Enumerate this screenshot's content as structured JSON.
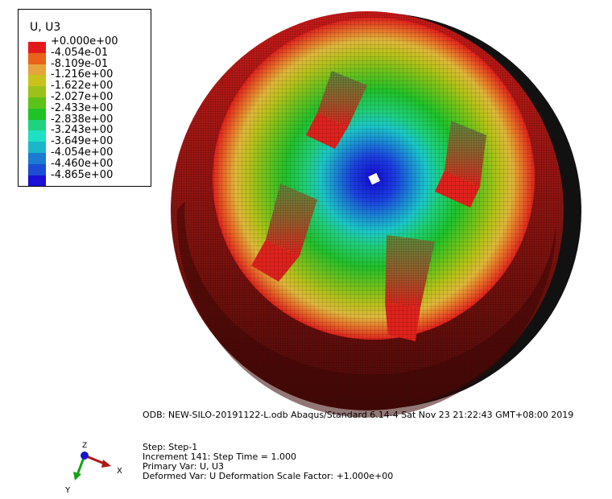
{
  "legend": {
    "title": "U, U3",
    "labels": [
      "+0.000e+00",
      "-4.054e-01",
      "-8.109e-01",
      "-1.216e+00",
      "-1.622e+00",
      "-2.027e+00",
      "-2.433e+00",
      "-2.838e+00",
      "-3.243e+00",
      "-3.649e+00",
      "-4.054e+00",
      "-4.460e+00",
      "-4.865e+00"
    ],
    "colors": [
      "#e31a1c",
      "#e8621a",
      "#e6a43a",
      "#c9c21d",
      "#9bc21a",
      "#5cc21a",
      "#1fc227",
      "#1fd27e",
      "#1fe0c2",
      "#1ab6c9",
      "#1a7bd0",
      "#1a4cd4",
      "#1a10d6"
    ]
  },
  "info": {
    "odb_line": "ODB: NEW-SILO-20191122-L.odb    Abaqus/Standard 6.14-4    Sat Nov 23 21:22:43 GMT+08:00 2019",
    "step_line": "Step: Step-1",
    "increment_line": "Increment    141: Step Time =    1.000",
    "primary_var_line": "Primary Var: U, U3",
    "deformed_var_line": "Deformed Var: U   Deformation Scale Factor: +1.000e+00"
  },
  "triad": {
    "x_label": "X",
    "y_label": "Y",
    "z_label": "Z",
    "x_color": "#b01616",
    "y_color": "#16a016",
    "z_color": "#1616c8"
  }
}
